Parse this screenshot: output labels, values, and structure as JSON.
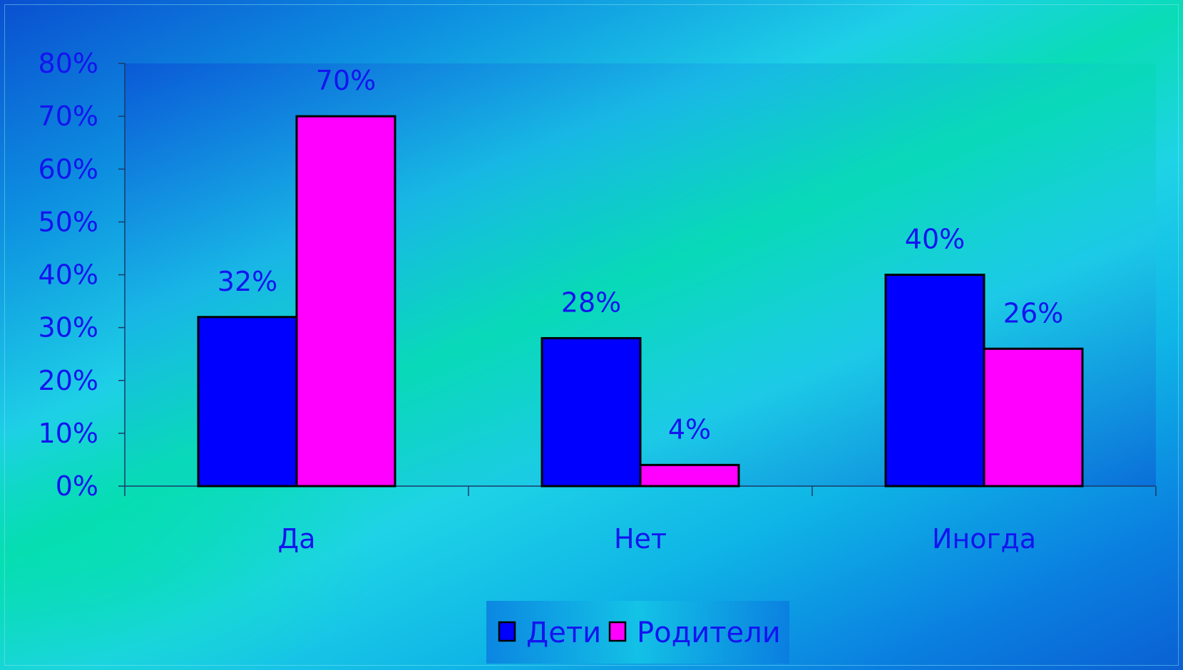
{
  "chart_data": {
    "type": "bar",
    "categories": [
      "Да",
      "Нет",
      "Иногда"
    ],
    "series": [
      {
        "name": "Дети",
        "values": [
          0.32,
          0.28,
          0.4
        ],
        "labels": [
          "32%",
          "28%",
          "40%"
        ],
        "color": "#0000ff"
      },
      {
        "name": "Родители",
        "values": [
          0.7,
          0.04,
          0.26
        ],
        "labels": [
          "70%",
          "4%",
          "26%"
        ],
        "color": "#ff00ff"
      }
    ],
    "ylim": [
      0,
      0.8
    ],
    "yticks": [
      0,
      0.1,
      0.2,
      0.3,
      0.4,
      0.5,
      0.6,
      0.7,
      0.8
    ],
    "ytick_labels": [
      "0%",
      "10%",
      "20%",
      "30%",
      "40%",
      "50%",
      "60%",
      "70%",
      "80%"
    ],
    "grid": false,
    "legend_position": "bottom",
    "text_color": "#1414f0"
  }
}
